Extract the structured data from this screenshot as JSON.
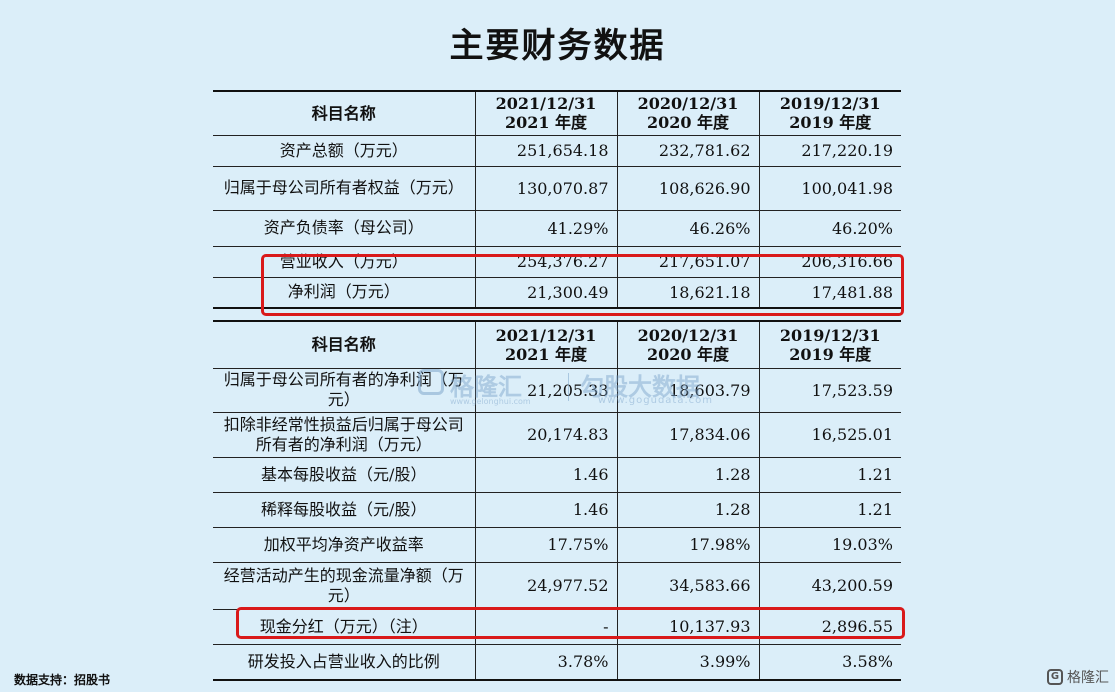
{
  "title": "主要财务数据",
  "table1": {
    "header": {
      "item": "科目名称",
      "cols": [
        {
          "date": "2021/12/31",
          "year": "2021 年度"
        },
        {
          "date": "2020/12/31",
          "year": "2020 年度"
        },
        {
          "date": "2019/12/31",
          "year": "2019 年度"
        }
      ]
    },
    "rows": [
      {
        "label": "资产总额（万元）",
        "v": [
          "251,654.18",
          "232,781.62",
          "217,220.19"
        ]
      },
      {
        "label": "归属于母公司所有者权益（万元）",
        "v": [
          "130,070.87",
          "108,626.90",
          "100,041.98"
        ]
      },
      {
        "label": "资产负债率（母公司）",
        "v": [
          "41.29%",
          "46.26%",
          "46.20%"
        ]
      },
      {
        "label": "营业收入（万元）",
        "v": [
          "254,376.27",
          "217,651.07",
          "206,316.66"
        ]
      },
      {
        "label": "净利润（万元）",
        "v": [
          "21,300.49",
          "18,621.18",
          "17,481.88"
        ]
      }
    ]
  },
  "table2": {
    "header": {
      "item": "科目名称",
      "cols": [
        {
          "date": "2021/12/31",
          "year": "2021 年度"
        },
        {
          "date": "2020/12/31",
          "year": "2020 年度"
        },
        {
          "date": "2019/12/31",
          "year": "2019 年度"
        }
      ]
    },
    "rows": [
      {
        "label": "归属于母公司所有者的净利润（万元）",
        "v": [
          "21,205.33",
          "18,603.79",
          "17,523.59"
        ]
      },
      {
        "label": "扣除非经常性损益后归属于母公司所有者的净利润（万元）",
        "v": [
          "20,174.83",
          "17,834.06",
          "16,525.01"
        ]
      },
      {
        "label": "基本每股收益（元/股）",
        "v": [
          "1.46",
          "1.28",
          "1.21"
        ]
      },
      {
        "label": "稀释每股收益（元/股）",
        "v": [
          "1.46",
          "1.28",
          "1.21"
        ]
      },
      {
        "label": "加权平均净资产收益率",
        "v": [
          "17.75%",
          "17.98%",
          "19.03%"
        ]
      },
      {
        "label": "经营活动产生的现金流量净额（万元）",
        "v": [
          "24,977.52",
          "34,583.66",
          "43,200.59"
        ]
      },
      {
        "label": "现金分红（万元）（注）",
        "v": [
          "-",
          "10,137.93",
          "2,896.55"
        ]
      },
      {
        "label": "研发投入占营业收入的比例",
        "v": [
          "3.78%",
          "3.99%",
          "3.58%"
        ]
      }
    ]
  },
  "watermark": {
    "brand": "格隆汇",
    "brand_url": "www.gelonghui.com",
    "data_brand": "勾股大数据",
    "data_url": "www.gogudata.com"
  },
  "footer": {
    "source": "数据支持：招股书",
    "brand": "格隆汇",
    "brand_mark": "G"
  },
  "highlight_color": "#d9191a"
}
